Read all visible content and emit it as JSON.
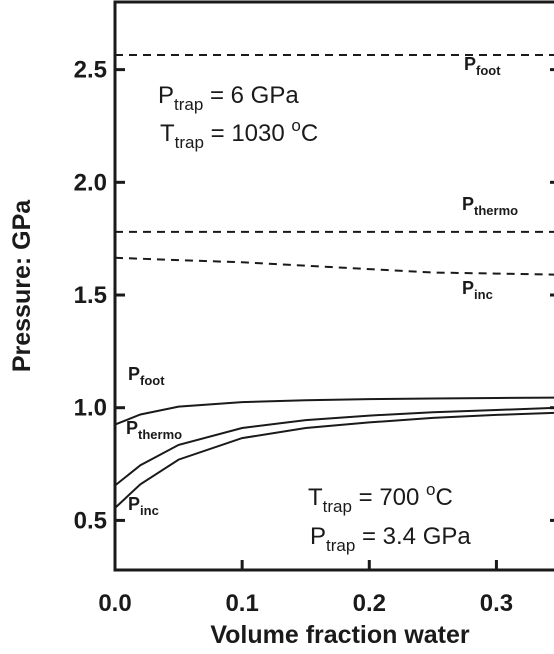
{
  "chart_data": {
    "type": "line",
    "xlabel": "Volume fraction water",
    "ylabel": "Pressure: GPa",
    "xlim": [
      0,
      0.35
    ],
    "ylim": [
      0.28,
      2.8
    ],
    "x_ticks": [
      0.0,
      0.1,
      0.2,
      0.3
    ],
    "x_tick_labels": [
      "0.0",
      "0.1",
      "0.2",
      "0.3"
    ],
    "y_ticks": [
      0.5,
      1.0,
      1.5,
      2.0,
      2.5
    ],
    "y_tick_labels": [
      "0.5",
      "1.0",
      "1.5",
      "2.0",
      "2.5"
    ],
    "grid": false,
    "annotations": {
      "top": {
        "p_main": "P",
        "p_sub": "trap",
        "p_value": " = 6 GPa",
        "t_main": "T",
        "t_sub": "trap",
        "t_value": " = 1030 ",
        "t_unit_sup": "o",
        "t_unit": "C"
      },
      "bottom": {
        "p_main": "P",
        "p_sub": "trap",
        "p_value": " = 3.4 GPa",
        "t_main": "T",
        "t_sub": "trap",
        "t_value": " = 700 ",
        "t_unit_sup": "o",
        "t_unit": "C"
      }
    },
    "series": [
      {
        "label_main": "P",
        "label_sub": "foot",
        "group": "6 GPa",
        "style": "dashed",
        "x": [
          0,
          0.35
        ],
        "y": [
          2.565,
          2.565
        ]
      },
      {
        "label_main": "P",
        "label_sub": "thermo",
        "group": "6 GPa",
        "style": "dashed",
        "x": [
          0,
          0.35
        ],
        "y": [
          1.78,
          1.78
        ]
      },
      {
        "label_main": "P",
        "label_sub": "inc",
        "group": "6 GPa",
        "style": "dashed",
        "x": [
          0,
          0.05,
          0.1,
          0.15,
          0.2,
          0.25,
          0.3,
          0.35
        ],
        "y": [
          1.665,
          1.655,
          1.645,
          1.63,
          1.615,
          1.6,
          1.595,
          1.59
        ]
      },
      {
        "label_main": "P",
        "label_sub": "foot",
        "group": "3.4 GPa",
        "style": "solid",
        "x": [
          0,
          0.02,
          0.05,
          0.1,
          0.15,
          0.2,
          0.25,
          0.3,
          0.35
        ],
        "y": [
          0.925,
          0.97,
          1.005,
          1.025,
          1.033,
          1.038,
          1.041,
          1.043,
          1.045
        ]
      },
      {
        "label_main": "P",
        "label_sub": "thermo",
        "group": "3.4 GPa",
        "style": "solid",
        "x": [
          0,
          0.02,
          0.05,
          0.1,
          0.15,
          0.2,
          0.25,
          0.3,
          0.35
        ],
        "y": [
          0.655,
          0.745,
          0.835,
          0.91,
          0.945,
          0.965,
          0.98,
          0.99,
          1.0
        ]
      },
      {
        "label_main": "P",
        "label_sub": "inc",
        "group": "3.4 GPa",
        "style": "solid",
        "x": [
          0,
          0.02,
          0.05,
          0.1,
          0.15,
          0.2,
          0.25,
          0.3,
          0.35
        ],
        "y": [
          0.555,
          0.66,
          0.77,
          0.865,
          0.91,
          0.935,
          0.955,
          0.968,
          0.978
        ]
      }
    ]
  }
}
